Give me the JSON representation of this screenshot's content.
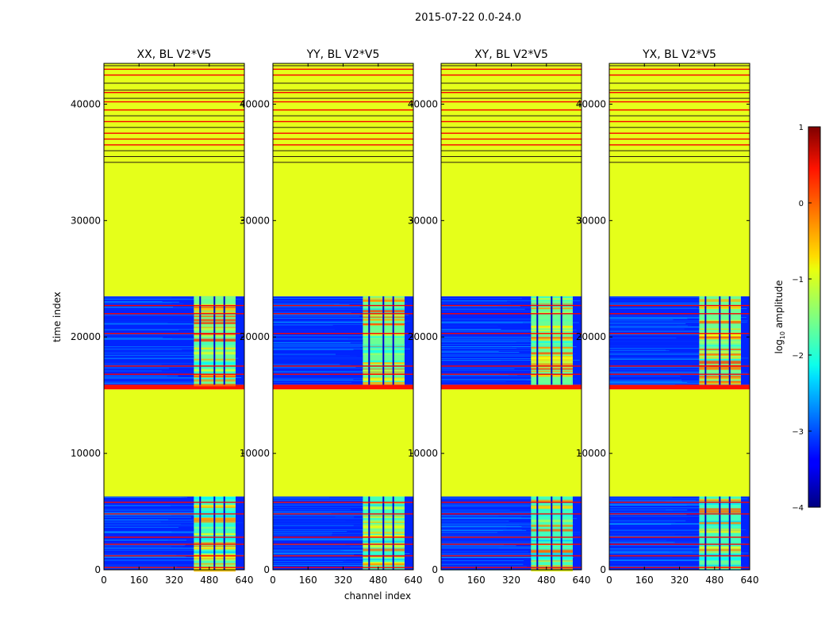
{
  "figure_title": "2015-07-22 0.0-24.0",
  "xlabel": "channel index",
  "ylabel": "time index",
  "colorbar": {
    "label_prefix": "log",
    "label_sub": "10",
    "label_suffix": " amplitude",
    "range": [
      -4,
      1
    ],
    "ticks": [
      1,
      0,
      -1,
      -2,
      -3,
      -4
    ],
    "tick_labels": [
      "1",
      "0",
      "−1",
      "−2",
      "−3",
      "−4"
    ],
    "colormap": "jet"
  },
  "chart_data": {
    "type": "heatmap",
    "panels": [
      {
        "title": "XX, BL V2*V5",
        "pol": "XX"
      },
      {
        "title": "YY, BL V2*V5",
        "pol": "YY"
      },
      {
        "title": "XY, BL V2*V5",
        "pol": "XY"
      },
      {
        "title": "YX, BL V2*V5",
        "pol": "YX"
      }
    ],
    "x_range": [
      0,
      640
    ],
    "x_ticks": [
      0,
      160,
      320,
      480,
      640
    ],
    "y_range": [
      0,
      43500
    ],
    "y_ticks": [
      0,
      10000,
      20000,
      30000,
      40000
    ],
    "flagged_value": -1.0,
    "regions": [
      {
        "t_start": 0,
        "t_end": 6300,
        "state": "data",
        "noise_log10": -3.2,
        "band_channels": [
          410,
          600
        ],
        "band_log10": -1.8
      },
      {
        "t_start": 6300,
        "t_end": 15500,
        "state": "flagged",
        "log10": -1.0
      },
      {
        "t_start": 15500,
        "t_end": 15900,
        "state": "line",
        "log10": 0.3
      },
      {
        "t_start": 15900,
        "t_end": 23500,
        "state": "data",
        "noise_log10": -3.2,
        "band_channels": [
          410,
          600
        ],
        "band_log10": -1.6
      },
      {
        "t_start": 23500,
        "t_end": 43500,
        "state": "flagged",
        "log10": -1.0
      }
    ],
    "red_lines_time": [
      22700,
      22000,
      20300,
      17500,
      16800,
      5800,
      4800,
      2800,
      2200,
      1200,
      200,
      36500,
      37000,
      37500,
      38500,
      39500,
      40200,
      41000,
      42500,
      43000
    ],
    "dark_lines_time": [
      35000,
      35500,
      36000,
      38000,
      39000,
      40500,
      41200,
      41800,
      43300
    ],
    "band_gaps_channels": [
      435,
      500,
      545
    ]
  }
}
